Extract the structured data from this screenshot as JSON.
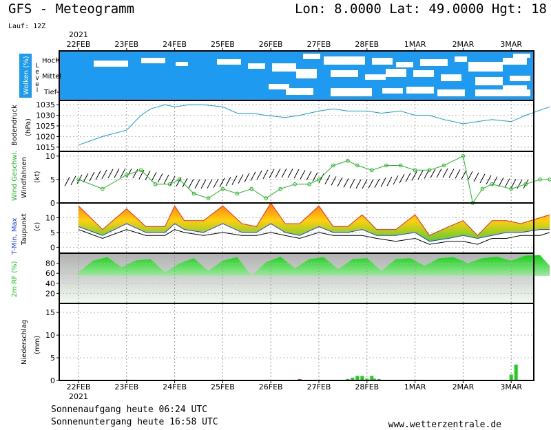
{
  "header": {
    "title": "GFS - Meteogramm",
    "coords": "Lon: 8.0000 Lat: 49.0000 Hgt: 18",
    "run": "Lauf: 12Z"
  },
  "timeline": {
    "year_label": "2021",
    "day_labels": [
      "22FEB",
      "23FEB",
      "24FEB",
      "25FEB",
      "26FEB",
      "27FEB",
      "28FEB",
      "1MAR",
      "2MAR",
      "3MAR"
    ]
  },
  "footer": {
    "sunrise": "Sonnenaufgang heute 06:24 UTC",
    "sunset": "Sonnenuntergang heute 16:58 UTC",
    "website": "www.wetterzentrale.de"
  },
  "colors": {
    "cloud_blue": "#1e9bf0",
    "pressure_line": "#18a0d8",
    "wind_green": "#22bb22",
    "rh_green": "#1ed01e",
    "precip_green": "#22cc22",
    "precip_red": "#e04020",
    "tmax_red": "#ff2020",
    "tmin_blue": "#2040ff"
  },
  "chart_data": [
    {
      "type": "heatmap",
      "panel": "clouds",
      "ylabel": "Wolken (%)",
      "side_label": "Level",
      "levels": [
        "Hoch",
        "Mittel",
        "Tief"
      ],
      "note": "cloud cover by level, mostly overcast (blue) with clear gaps (white)",
      "ylim": [
        0,
        100
      ]
    },
    {
      "type": "line",
      "panel": "pressure",
      "ylabel": "Bodendruck",
      "unit": "(hPa)",
      "yticks": [
        1015,
        1020,
        1025,
        1030,
        1035
      ],
      "ylim": [
        1013,
        1037
      ],
      "x_days": [
        0,
        0.5,
        1.0,
        1.3,
        1.5,
        1.8,
        2.0,
        2.3,
        2.6,
        3.0,
        3.3,
        3.6,
        3.9,
        4.3,
        4.6,
        5.0,
        5.3,
        5.6,
        6.0,
        6.3,
        6.7,
        7.0,
        7.3,
        7.6,
        8.0,
        8.3,
        8.6,
        9.0,
        9.3,
        9.8
      ],
      "values": [
        1016,
        1020,
        1023,
        1030,
        1033,
        1035,
        1034,
        1035,
        1035,
        1034,
        1031,
        1031,
        1030,
        1029,
        1030,
        1032,
        1033,
        1032,
        1032,
        1031,
        1032,
        1030,
        1030,
        1028,
        1026,
        1027,
        1028,
        1027,
        1030,
        1034
      ]
    },
    {
      "type": "line",
      "panel": "wind",
      "ylabel": "Wind Geschwi.",
      "ylabel2": "Windfahnen",
      "unit": "(kt)",
      "yticks": [
        0,
        5,
        10
      ],
      "ylim": [
        0,
        11
      ],
      "x_days": [
        0,
        0.5,
        1.0,
        1.3,
        1.6,
        1.9,
        2.1,
        2.4,
        2.7,
        3.0,
        3.3,
        3.6,
        3.9,
        4.2,
        4.5,
        4.8,
        5.0,
        5.3,
        5.6,
        5.8,
        6.1,
        6.4,
        6.7,
        7.0,
        7.3,
        7.6,
        8.0,
        8.2,
        8.4,
        8.6,
        9.0,
        9.3,
        9.6,
        9.8
      ],
      "values": [
        5,
        3,
        6,
        7,
        4,
        4,
        5,
        2,
        1,
        3,
        2,
        3,
        1,
        3,
        4,
        4,
        5,
        8,
        9,
        8,
        7,
        8,
        8,
        7,
        7,
        8,
        10,
        0,
        3,
        4,
        3,
        4,
        5,
        5
      ]
    },
    {
      "type": "area",
      "panel": "temperature",
      "ylabel": "T-Min, Max",
      "ylabel2": "Taupunkt",
      "unit": "(c)",
      "yticks": [
        0,
        5,
        10
      ],
      "ylim": [
        -2,
        15
      ],
      "x_days": [
        0,
        0.5,
        1.0,
        1.4,
        1.8,
        2.0,
        2.2,
        2.6,
        3.0,
        3.4,
        3.7,
        4.0,
        4.3,
        4.6,
        5.0,
        5.3,
        5.6,
        5.9,
        6.2,
        6.6,
        7.0,
        7.3,
        7.7,
        8.0,
        8.3,
        8.6,
        8.9,
        9.2,
        9.6,
        9.8
      ],
      "t_max": [
        14,
        6,
        13,
        7,
        7,
        14,
        9,
        9,
        14,
        8,
        7,
        15,
        8,
        8,
        14,
        7,
        7,
        11,
        6,
        6,
        11,
        4,
        7,
        9,
        4,
        9,
        9,
        8,
        10,
        11
      ],
      "t_min": [
        7,
        4,
        8,
        5,
        5,
        8,
        6,
        5,
        8,
        5,
        5,
        8,
        5,
        4,
        7,
        5,
        5,
        6,
        4,
        4,
        5,
        2,
        3,
        4,
        3,
        4,
        5,
        5,
        6,
        6
      ],
      "dewpoint": [
        6,
        3,
        6,
        4,
        4,
        6,
        5,
        4,
        5,
        4,
        4,
        5,
        4,
        3,
        5,
        4,
        4,
        4,
        3,
        2,
        3,
        1,
        2,
        2,
        1,
        3,
        3,
        4,
        4,
        5
      ]
    },
    {
      "type": "area",
      "panel": "humidity",
      "ylabel": "2m RF (%)",
      "yticks": [
        20,
        40,
        60,
        80
      ],
      "ylim": [
        0,
        100
      ],
      "x_days": [
        0,
        0.3,
        0.6,
        0.9,
        1.2,
        1.5,
        1.8,
        2.1,
        2.4,
        2.7,
        3.0,
        3.3,
        3.6,
        3.9,
        4.2,
        4.5,
        4.8,
        5.1,
        5.4,
        5.7,
        6.0,
        6.3,
        6.6,
        6.9,
        7.2,
        7.5,
        7.8,
        8.1,
        8.4,
        8.7,
        9.0,
        9.3,
        9.6,
        9.8
      ],
      "values": [
        62,
        85,
        92,
        72,
        86,
        88,
        62,
        80,
        90,
        65,
        85,
        92,
        55,
        82,
        93,
        70,
        88,
        92,
        68,
        88,
        90,
        65,
        88,
        90,
        75,
        90,
        92,
        80,
        90,
        93,
        85,
        95,
        96,
        75
      ]
    },
    {
      "type": "bar",
      "panel": "precipitation",
      "ylabel": "Niederschlag",
      "unit": "(mm)",
      "yticks": [
        0,
        5,
        10,
        15
      ],
      "ylim": [
        0,
        17
      ],
      "x_days": [
        4.6,
        5.6,
        5.7,
        5.8,
        5.9,
        6.0,
        6.1,
        6.15,
        6.25,
        9.0,
        9.1
      ],
      "values": [
        0.3,
        0.3,
        0.6,
        1.0,
        1.0,
        0.4,
        1.0,
        0.4,
        0.3,
        1.3,
        3.5
      ]
    }
  ]
}
